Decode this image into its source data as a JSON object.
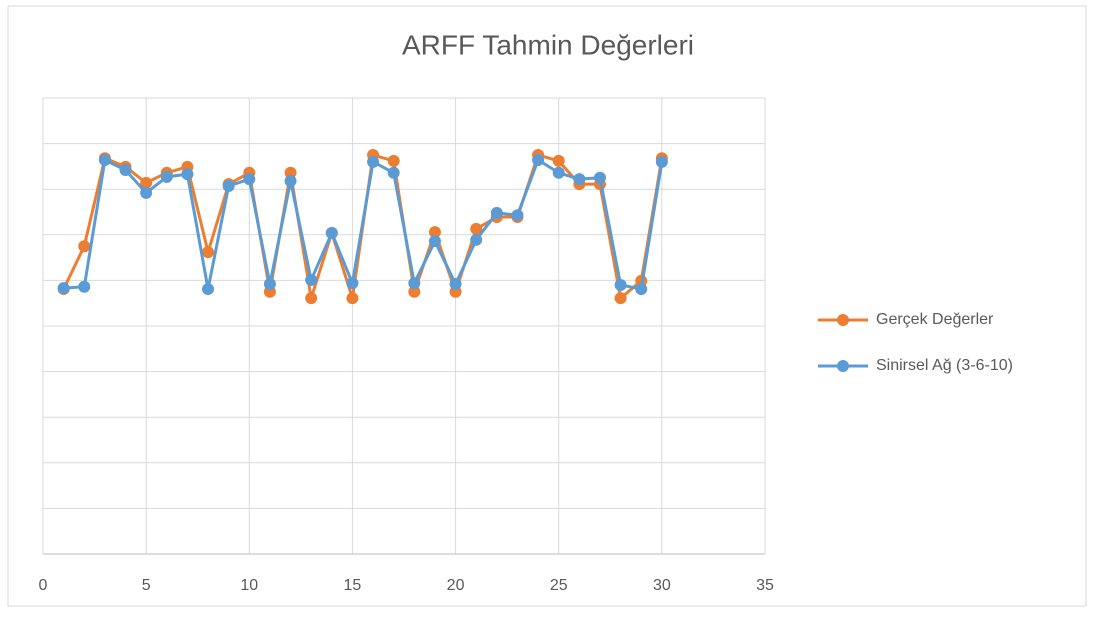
{
  "chart_data": {
    "type": "line",
    "title": "ARFF Tahmin Değerleri",
    "x": [
      1,
      2,
      3,
      4,
      5,
      6,
      7,
      8,
      9,
      10,
      11,
      12,
      13,
      14,
      15,
      16,
      17,
      18,
      19,
      20,
      21,
      22,
      23,
      24,
      25,
      26,
      27,
      28,
      29,
      30
    ],
    "series": [
      {
        "name": "Gerçek Değerler",
        "color": "#ED7D31",
        "values": [
          5.81,
          6.75,
          8.68,
          8.49,
          8.14,
          8.36,
          8.49,
          6.62,
          8.11,
          8.36,
          5.75,
          8.36,
          5.61,
          7.04,
          5.61,
          8.75,
          8.62,
          5.75,
          7.06,
          5.75,
          7.13,
          7.39,
          7.39,
          8.75,
          8.62,
          8.11,
          8.11,
          5.61,
          5.99,
          8.68
        ]
      },
      {
        "name": "Sinirsel Ağ (3-6-10)",
        "color": "#5B9BD5",
        "values": [
          5.83,
          5.86,
          8.64,
          8.42,
          7.92,
          8.27,
          8.33,
          5.81,
          8.07,
          8.22,
          5.92,
          8.18,
          6.01,
          7.04,
          5.94,
          8.6,
          8.36,
          5.94,
          6.86,
          5.92,
          6.89,
          7.48,
          7.43,
          8.64,
          8.36,
          8.22,
          8.25,
          5.9,
          5.81,
          8.6
        ]
      }
    ],
    "xlim": [
      0,
      35
    ],
    "xticks": [
      0,
      5,
      10,
      15,
      20,
      25,
      30,
      35
    ],
    "ylim": [
      0,
      10
    ],
    "yticks": [
      0,
      1,
      2,
      3,
      4,
      5,
      6,
      7,
      8,
      9,
      10
    ],
    "grid": true,
    "legend": "right"
  }
}
